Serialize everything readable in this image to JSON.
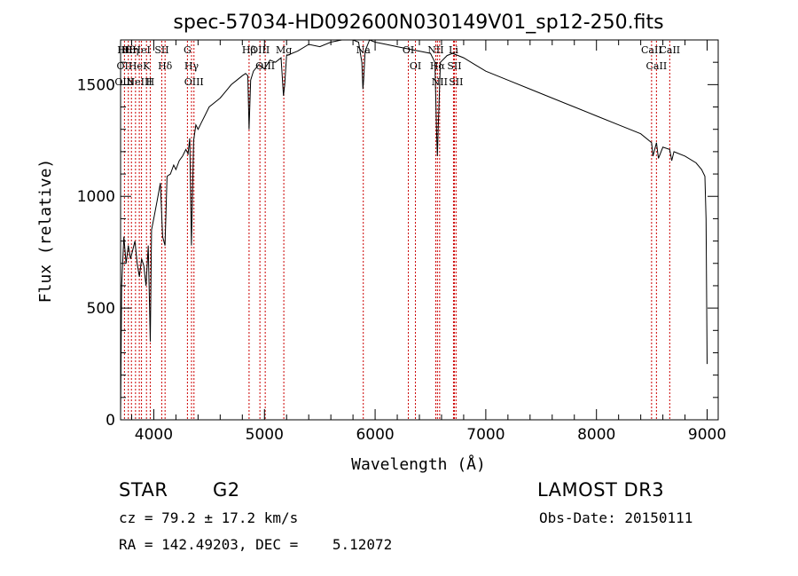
{
  "chart_data": {
    "type": "line",
    "title": "spec-57034-HD092600N030149V01_sp12-250.fits",
    "xlabel": "Wavelength (Å)",
    "ylabel": "Flux (relative)",
    "xlim": [
      3700,
      9100
    ],
    "ylim": [
      0,
      1700
    ],
    "xticks": [
      4000,
      5000,
      6000,
      7000,
      8000,
      9000
    ],
    "yticks": [
      0,
      500,
      1000,
      1500
    ],
    "xtick_labels": [
      "4000",
      "5000",
      "6000",
      "7000",
      "8000",
      "9000"
    ],
    "ytick_labels": [
      "0",
      "500",
      "1000",
      "1500"
    ],
    "grid": false,
    "series": [
      {
        "name": "flux",
        "color": "#000000",
        "x": [
          3700,
          3710,
          3730,
          3750,
          3770,
          3790,
          3810,
          3830,
          3850,
          3870,
          3890,
          3910,
          3930,
          3950,
          3968,
          3980,
          4000,
          4030,
          4060,
          4080,
          4101,
          4120,
          4150,
          4180,
          4200,
          4230,
          4260,
          4290,
          4310,
          4325,
          4340,
          4360,
          4380,
          4400,
          4430,
          4460,
          4500,
          4550,
          4600,
          4650,
          4700,
          4750,
          4800,
          4830,
          4850,
          4861,
          4875,
          4900,
          4950,
          5000,
          5050,
          5100,
          5150,
          5172,
          5183,
          5200,
          5300,
          5400,
          5500,
          5600,
          5700,
          5800,
          5850,
          5880,
          5890,
          5896,
          5910,
          5950,
          6000,
          6100,
          6200,
          6300,
          6400,
          6500,
          6540,
          6555,
          6563,
          6570,
          6590,
          6650,
          6700,
          6800,
          6900,
          7000,
          7200,
          7400,
          7600,
          7800,
          8000,
          8200,
          8400,
          8498,
          8510,
          8542,
          8560,
          8600,
          8662,
          8680,
          8700,
          8800,
          8900,
          8950,
          8980,
          8990,
          9000
        ],
        "values": [
          20,
          600,
          820,
          700,
          780,
          720,
          760,
          800,
          700,
          640,
          720,
          690,
          600,
          780,
          350,
          850,
          900,
          980,
          1060,
          820,
          780,
          1090,
          1100,
          1140,
          1120,
          1160,
          1180,
          1210,
          1190,
          1260,
          780,
          1250,
          1320,
          1300,
          1330,
          1360,
          1400,
          1420,
          1440,
          1470,
          1500,
          1520,
          1540,
          1550,
          1540,
          1300,
          1520,
          1560,
          1590,
          1570,
          1610,
          1600,
          1620,
          1450,
          1500,
          1630,
          1650,
          1680,
          1670,
          1690,
          1700,
          1700,
          1690,
          1600,
          1480,
          1520,
          1650,
          1700,
          1690,
          1680,
          1670,
          1660,
          1650,
          1640,
          1600,
          1300,
          1180,
          1300,
          1600,
          1630,
          1640,
          1620,
          1590,
          1560,
          1520,
          1480,
          1440,
          1400,
          1360,
          1320,
          1280,
          1240,
          1180,
          1240,
          1170,
          1220,
          1210,
          1160,
          1200,
          1180,
          1150,
          1120,
          1090,
          900,
          250
        ]
      }
    ],
    "lines": [
      {
        "x": 3735,
        "labels": [
          "Hθ",
          "OII",
          "OIII"
        ]
      },
      {
        "x": 3770,
        "labels": [
          "Hθ"
        ]
      },
      {
        "x": 3798,
        "labels": [
          "Hη"
        ]
      },
      {
        "x": 3835,
        "labels": [
          "He"
        ]
      },
      {
        "x": 3869,
        "labels": [
          "NeIII"
        ]
      },
      {
        "x": 3889,
        "labels": [
          "HeI"
        ]
      },
      {
        "x": 3934,
        "labels": [
          "K"
        ]
      },
      {
        "x": 3968,
        "labels": [
          "H"
        ]
      },
      {
        "x": 4072,
        "labels": [
          "SII"
        ]
      },
      {
        "x": 4102,
        "labels": [
          "Hδ"
        ]
      },
      {
        "x": 4304,
        "labels": [
          "G"
        ]
      },
      {
        "x": 4341,
        "labels": [
          "Hγ"
        ]
      },
      {
        "x": 4363,
        "labels": [
          "OIII"
        ]
      },
      {
        "x": 4861,
        "labels": [
          "Hβ"
        ]
      },
      {
        "x": 4959,
        "labels": [
          "OIII"
        ]
      },
      {
        "x": 5007,
        "labels": [
          "OIII"
        ]
      },
      {
        "x": 5175,
        "labels": [
          "Mg"
        ]
      },
      {
        "x": 5893,
        "labels": [
          "Na"
        ]
      },
      {
        "x": 6300,
        "labels": [
          "OI"
        ]
      },
      {
        "x": 6364,
        "labels": [
          "OI"
        ]
      },
      {
        "x": 6548,
        "labels": [
          "NII"
        ]
      },
      {
        "x": 6563,
        "labels": [
          "Hα"
        ]
      },
      {
        "x": 6583,
        "labels": [
          "NII"
        ]
      },
      {
        "x": 6708,
        "labels": [
          "Li"
        ]
      },
      {
        "x": 6716,
        "labels": [
          "SII"
        ]
      },
      {
        "x": 6731,
        "labels": [
          "SII"
        ]
      },
      {
        "x": 8498,
        "labels": [
          "CaII"
        ]
      },
      {
        "x": 8542,
        "labels": [
          "CaII"
        ]
      },
      {
        "x": 8662,
        "labels": [
          "CaII"
        ]
      }
    ],
    "line_color": "#cc0000",
    "axis_color": "#000000"
  },
  "info": {
    "object_class": "STAR",
    "subclass": "G2",
    "survey": "LAMOST DR3",
    "cz": "cz = 79.2 ± 17.2 km/s",
    "obs_date": "Obs-Date: 20150111",
    "coords": "RA = 142.49203, DEC =    5.12072"
  }
}
